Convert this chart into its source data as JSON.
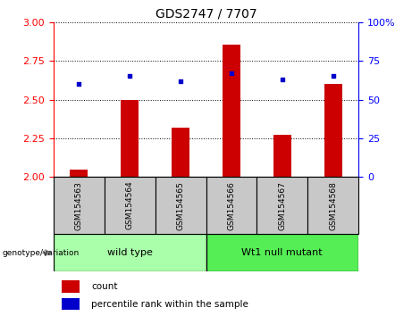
{
  "title": "GDS2747 / 7707",
  "categories": [
    "GSM154563",
    "GSM154564",
    "GSM154565",
    "GSM154566",
    "GSM154567",
    "GSM154568"
  ],
  "bar_values": [
    2.05,
    2.5,
    2.32,
    2.855,
    2.27,
    2.6
  ],
  "scatter_pct": [
    60,
    65,
    62,
    67,
    63,
    65
  ],
  "ylim_left": [
    2.0,
    3.0
  ],
  "ylim_right": [
    0,
    100
  ],
  "yticks_left": [
    2.0,
    2.25,
    2.5,
    2.75,
    3.0
  ],
  "yticks_right": [
    0,
    25,
    50,
    75,
    100
  ],
  "bar_color": "#cc0000",
  "scatter_color": "#0000cc",
  "group1_label": "wild type",
  "group2_label": "Wt1 null mutant",
  "group1_indices": [
    0,
    1,
    2
  ],
  "group2_indices": [
    3,
    4,
    5
  ],
  "group1_color": "#aaffaa",
  "group2_color": "#55ee55",
  "genotype_label": "genotype/variation",
  "legend_bar_label": "count",
  "legend_scatter_label": "percentile rank within the sample",
  "xtick_bg_color": "#c8c8c8",
  "title_fontsize": 10,
  "bar_width": 0.35
}
